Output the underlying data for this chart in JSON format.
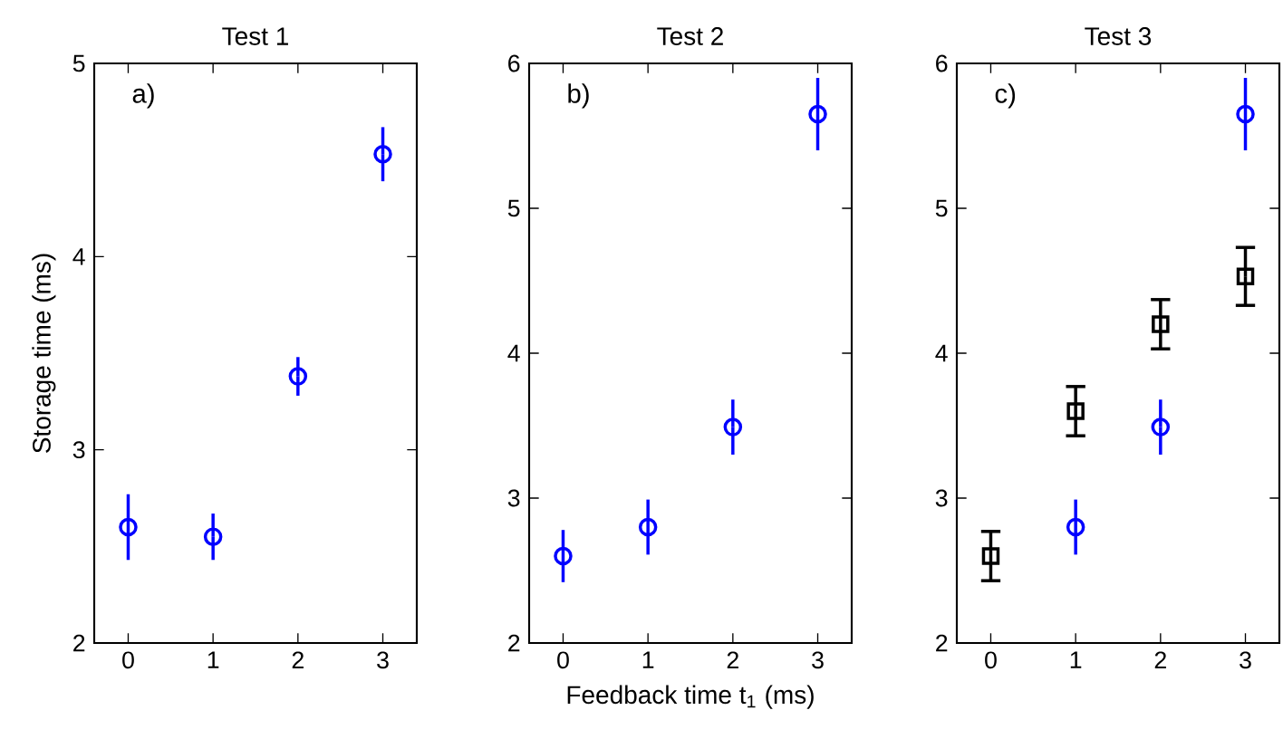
{
  "chart_data": [
    {
      "type": "scatter",
      "title": "Test 1",
      "ylabel": "Storage time (ms)",
      "annotations": [
        "a)"
      ],
      "xlim": [
        -0.4,
        3.4
      ],
      "xticks": [
        0,
        1,
        2,
        3
      ],
      "ylim": [
        2,
        5
      ],
      "yticks": [
        2,
        3,
        4,
        5
      ],
      "series": [
        {
          "color": "#0000ff",
          "marker": "circle",
          "x": [
            0,
            1,
            2,
            3
          ],
          "values": [
            2.6,
            2.55,
            3.38,
            4.53
          ],
          "errors": [
            0.17,
            0.12,
            0.1,
            0.14
          ]
        }
      ]
    },
    {
      "type": "scatter",
      "title": "Test 2",
      "xlabel": "Feedback time t$_{1}$ (ms)",
      "annotations": [
        "b)"
      ],
      "xlim": [
        -0.4,
        3.4
      ],
      "xticks": [
        0,
        1,
        2,
        3
      ],
      "ylim": [
        2,
        6
      ],
      "yticks": [
        2,
        3,
        4,
        5,
        6
      ],
      "series": [
        {
          "color": "#0000ff",
          "marker": "circle",
          "x": [
            0,
            1,
            2,
            3
          ],
          "values": [
            2.6,
            2.8,
            3.49,
            5.65
          ],
          "errors": [
            0.18,
            0.19,
            0.19,
            0.25
          ]
        }
      ]
    },
    {
      "type": "scatter",
      "title": "Test 3",
      "annotations": [
        "c)"
      ],
      "xlim": [
        -0.4,
        3.4
      ],
      "xticks": [
        0,
        1,
        2,
        3
      ],
      "ylim": [
        2,
        6
      ],
      "yticks": [
        2,
        3,
        4,
        5,
        6
      ],
      "series": [
        {
          "color": "#000000",
          "marker": "square",
          "x": [
            0,
            1,
            2,
            3
          ],
          "values": [
            2.6,
            3.6,
            4.2,
            4.53
          ],
          "errors": [
            0.17,
            0.17,
            0.17,
            0.2
          ]
        },
        {
          "color": "#0000ff",
          "marker": "circle",
          "x": [
            1,
            2,
            3
          ],
          "values": [
            2.8,
            3.49,
            5.65
          ],
          "errors": [
            0.19,
            0.19,
            0.25
          ]
        }
      ]
    }
  ]
}
